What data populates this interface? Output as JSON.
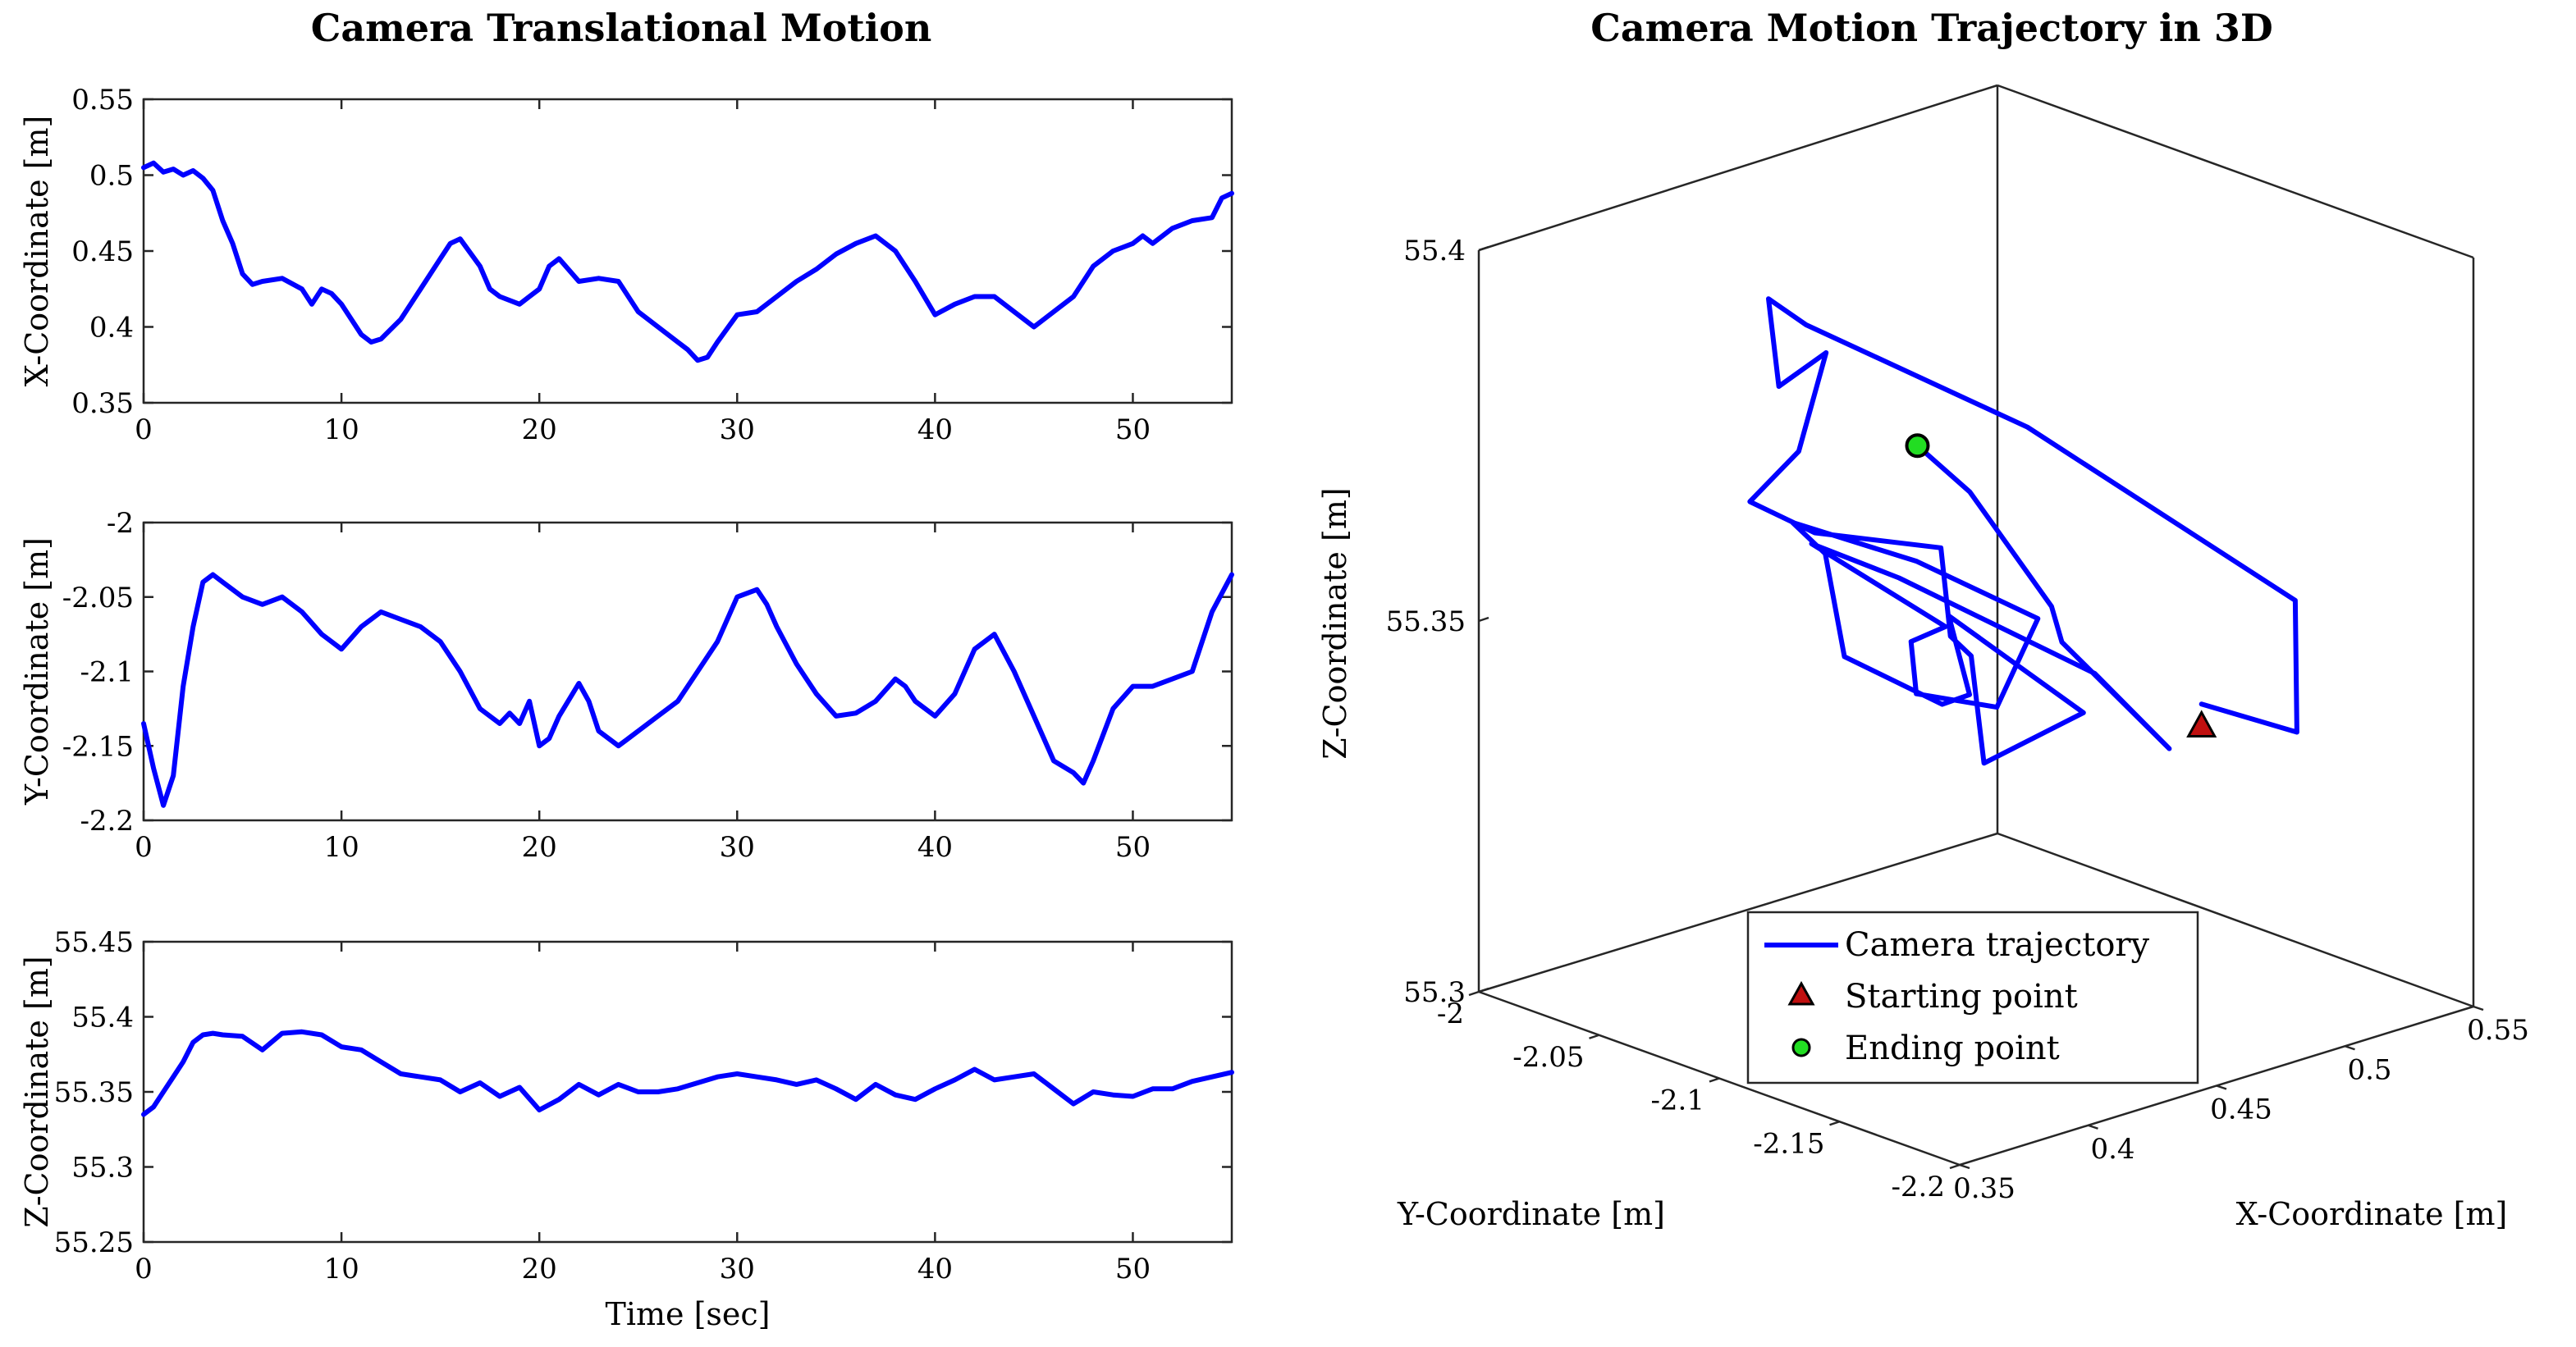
{
  "chart_data": [
    {
      "type": "line",
      "title": "Camera Translational Motion",
      "subplots": [
        {
          "ylabel": "X-Coordinate [m]",
          "xlabel": "",
          "xlim": [
            0,
            55
          ],
          "ylim": [
            0.35,
            0.55
          ],
          "xticks": [
            "0",
            "10",
            "20",
            "30",
            "40",
            "50"
          ],
          "yticks": [
            "0.35",
            "0.4",
            "0.45",
            "0.5",
            "0.55"
          ],
          "series": [
            {
              "name": "X",
              "x": [
                0,
                0.5,
                1,
                1.5,
                2,
                2.5,
                3,
                3.5,
                4,
                4.5,
                5,
                5.5,
                6,
                7,
                8,
                8.5,
                9,
                9.5,
                10,
                11,
                11.5,
                12,
                13,
                14,
                15,
                15.5,
                16,
                17,
                17.5,
                18,
                19,
                19.5,
                20,
                20.5,
                21,
                22,
                23,
                24,
                25,
                26,
                27,
                27.5,
                28,
                28.5,
                29,
                30,
                31,
                32,
                33,
                34,
                35,
                36,
                37,
                38,
                39,
                40,
                41,
                42,
                43,
                44,
                45,
                46,
                47,
                48,
                49,
                50,
                50.5,
                51,
                52,
                53,
                54,
                54.5,
                55
              ],
              "y": [
                0.505,
                0.508,
                0.502,
                0.504,
                0.5,
                0.503,
                0.498,
                0.49,
                0.47,
                0.455,
                0.435,
                0.428,
                0.43,
                0.432,
                0.425,
                0.415,
                0.425,
                0.422,
                0.415,
                0.395,
                0.39,
                0.392,
                0.405,
                0.425,
                0.445,
                0.455,
                0.458,
                0.44,
                0.425,
                0.42,
                0.415,
                0.42,
                0.425,
                0.44,
                0.445,
                0.43,
                0.432,
                0.43,
                0.41,
                0.4,
                0.39,
                0.385,
                0.378,
                0.38,
                0.39,
                0.408,
                0.41,
                0.42,
                0.43,
                0.438,
                0.448,
                0.455,
                0.46,
                0.45,
                0.43,
                0.408,
                0.415,
                0.42,
                0.42,
                0.41,
                0.4,
                0.41,
                0.42,
                0.44,
                0.45,
                0.455,
                0.46,
                0.455,
                0.465,
                0.47,
                0.472,
                0.485,
                0.488
              ]
            }
          ]
        },
        {
          "ylabel": "Y-Coordinate [m]",
          "xlabel": "",
          "xlim": [
            0,
            55
          ],
          "ylim": [
            -2.2,
            -2.0
          ],
          "xticks": [
            "0",
            "10",
            "20",
            "30",
            "40",
            "50"
          ],
          "yticks": [
            "-2.2",
            "-2.15",
            "-2.1",
            "-2.05",
            "-2"
          ],
          "series": [
            {
              "name": "Y",
              "x": [
                0,
                0.5,
                1,
                1.5,
                2,
                2.5,
                3,
                3.5,
                4,
                5,
                6,
                7,
                8,
                9,
                10,
                11,
                12,
                13,
                14,
                15,
                16,
                17,
                18,
                18.5,
                19,
                19.5,
                20,
                20.5,
                21,
                22,
                22.5,
                23,
                24,
                24.5,
                25,
                26,
                27,
                28,
                29,
                30,
                31,
                31.5,
                32,
                33,
                34,
                35,
                36,
                37,
                38,
                38.5,
                39,
                40,
                41,
                42,
                43,
                44,
                45,
                46,
                47,
                47.5,
                48,
                49,
                50,
                51,
                52,
                53,
                54,
                55
              ],
              "y": [
                -2.135,
                -2.165,
                -2.19,
                -2.17,
                -2.11,
                -2.07,
                -2.04,
                -2.035,
                -2.04,
                -2.05,
                -2.055,
                -2.05,
                -2.06,
                -2.075,
                -2.085,
                -2.07,
                -2.06,
                -2.065,
                -2.07,
                -2.08,
                -2.1,
                -2.125,
                -2.135,
                -2.128,
                -2.135,
                -2.12,
                -2.15,
                -2.145,
                -2.13,
                -2.108,
                -2.12,
                -2.14,
                -2.15,
                -2.145,
                -2.14,
                -2.13,
                -2.12,
                -2.1,
                -2.08,
                -2.05,
                -2.045,
                -2.055,
                -2.07,
                -2.095,
                -2.115,
                -2.13,
                -2.128,
                -2.12,
                -2.105,
                -2.11,
                -2.12,
                -2.13,
                -2.115,
                -2.085,
                -2.075,
                -2.1,
                -2.13,
                -2.16,
                -2.168,
                -2.175,
                -2.16,
                -2.125,
                -2.11,
                -2.11,
                -2.105,
                -2.1,
                -2.06,
                -2.035
              ]
            }
          ]
        },
        {
          "ylabel": "Z-Coordinate [m]",
          "xlabel": "Time [sec]",
          "xlim": [
            0,
            55
          ],
          "ylim": [
            55.25,
            55.45
          ],
          "xticks": [
            "0",
            "10",
            "20",
            "30",
            "40",
            "50"
          ],
          "yticks": [
            "55.25",
            "55.3",
            "55.35",
            "55.4",
            "55.45"
          ],
          "series": [
            {
              "name": "Z",
              "x": [
                0,
                0.5,
                1,
                1.5,
                2,
                2.5,
                3,
                3.5,
                4,
                5,
                6,
                7,
                8,
                9,
                10,
                11,
                12,
                13,
                14,
                15,
                16,
                17,
                18,
                19,
                20,
                21,
                22,
                23,
                24,
                25,
                26,
                27,
                28,
                29,
                30,
                31,
                32,
                33,
                34,
                35,
                36,
                37,
                38,
                39,
                40,
                41,
                42,
                43,
                44,
                45,
                46,
                47,
                48,
                49,
                50,
                51,
                52,
                53,
                54,
                55
              ],
              "y": [
                55.335,
                55.34,
                55.35,
                55.36,
                55.37,
                55.383,
                55.388,
                55.389,
                55.388,
                55.387,
                55.378,
                55.389,
                55.39,
                55.388,
                55.38,
                55.378,
                55.37,
                55.362,
                55.36,
                55.358,
                55.35,
                55.356,
                55.347,
                55.353,
                55.338,
                55.345,
                55.355,
                55.348,
                55.355,
                55.35,
                55.35,
                55.352,
                55.356,
                55.36,
                55.362,
                55.36,
                55.358,
                55.355,
                55.358,
                55.352,
                55.345,
                55.355,
                55.348,
                55.345,
                55.352,
                55.358,
                55.365,
                55.358,
                55.36,
                55.362,
                55.352,
                55.342,
                55.35,
                55.348,
                55.347,
                55.352,
                55.352,
                55.357,
                55.36,
                55.363
              ]
            }
          ]
        }
      ]
    },
    {
      "type": "line3d",
      "title": "Camera Motion Trajectory in 3D",
      "xlabel": "X-Coordinate [m]",
      "ylabel": "Y-Coordinate [m]",
      "zlabel": "Z-Coordinate [m]",
      "xlim": [
        0.35,
        0.55
      ],
      "ylim": [
        -2.2,
        -2.0
      ],
      "zlim": [
        55.3,
        55.4
      ],
      "xticks": [
        "0.35",
        "0.4",
        "0.45",
        "0.5",
        "0.55"
      ],
      "yticks": [
        "-2.2",
        "-2.15",
        "-2.1",
        "-2.05",
        "-2"
      ],
      "zticks": [
        "55.3",
        "55.35",
        "55.4"
      ],
      "series": [
        {
          "name": "Camera trajectory",
          "color": "#0000ff",
          "points": [
            [
              0.505,
              -2.135,
              55.338
            ],
            [
              0.5,
              -2.18,
              55.34
            ],
            [
              0.49,
              -2.19,
              55.36
            ],
            [
              0.47,
              -2.1,
              55.375
            ],
            [
              0.44,
              -2.04,
              55.385
            ],
            [
              0.43,
              -2.035,
              55.389
            ],
            [
              0.42,
              -2.05,
              55.38
            ],
            [
              0.415,
              -2.075,
              55.388
            ],
            [
              0.395,
              -2.085,
              55.378
            ],
            [
              0.39,
              -2.07,
              55.37
            ],
            [
              0.42,
              -2.065,
              55.362
            ],
            [
              0.455,
              -2.08,
              55.358
            ],
            [
              0.44,
              -2.1,
              55.35
            ],
            [
              0.42,
              -2.13,
              55.353
            ],
            [
              0.425,
              -2.13,
              55.338
            ],
            [
              0.445,
              -2.15,
              55.345
            ],
            [
              0.43,
              -2.11,
              55.355
            ],
            [
              0.41,
              -2.14,
              55.35
            ],
            [
              0.39,
              -2.15,
              55.352
            ],
            [
              0.38,
              -2.12,
              55.356
            ],
            [
              0.41,
              -2.08,
              55.362
            ],
            [
              0.43,
              -2.045,
              55.36
            ],
            [
              0.455,
              -2.07,
              55.355
            ],
            [
              0.46,
              -2.115,
              55.352
            ],
            [
              0.43,
              -2.13,
              55.345
            ],
            [
              0.408,
              -2.12,
              55.348
            ],
            [
              0.42,
              -2.105,
              55.352
            ],
            [
              0.41,
              -2.13,
              55.358
            ],
            [
              0.4,
              -2.085,
              55.365
            ],
            [
              0.42,
              -2.1,
              55.36
            ],
            [
              0.44,
              -2.16,
              55.352
            ],
            [
              0.455,
              -2.175,
              55.342
            ],
            [
              0.46,
              -2.125,
              55.35
            ],
            [
              0.47,
              -2.11,
              55.352
            ],
            [
              0.485,
              -2.06,
              55.36
            ],
            [
              0.488,
              -2.035,
              55.363
            ]
          ]
        },
        {
          "name": "Starting point",
          "color": "#c01010",
          "marker": "triangle",
          "point": [
            0.505,
            -2.135,
            55.335
          ]
        },
        {
          "name": "Ending point",
          "color": "#22dd22",
          "marker": "circle",
          "point": [
            0.488,
            -2.035,
            55.363
          ]
        }
      ],
      "legend": "bottom-center"
    }
  ]
}
